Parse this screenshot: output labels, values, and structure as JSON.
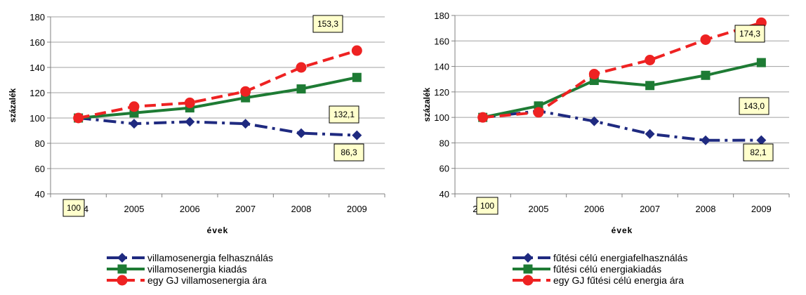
{
  "chart_data": [
    {
      "type": "line",
      "xlabel": "évek",
      "ylabel": "százalék",
      "ylim": [
        40,
        180
      ],
      "yticks": [
        "40",
        "60",
        "80",
        "100",
        "120",
        "140",
        "160",
        "180"
      ],
      "grid": "horizontal",
      "legend_position": "bottom",
      "categories": [
        "2004",
        "2005",
        "2006",
        "2007",
        "2008",
        "2009"
      ],
      "series": [
        {
          "name": "villamosenergia felhasználás",
          "color": "#1f2a80",
          "marker": "diamond",
          "dash": "dashdot",
          "values": [
            100,
            95.5,
            97,
            95.5,
            88,
            86.3
          ]
        },
        {
          "name": "villamosenergia kiadás",
          "color": "#1e7b34",
          "marker": "square",
          "dash": "solid",
          "values": [
            100,
            104,
            108,
            116,
            123,
            132.1
          ]
        },
        {
          "name": "egy GJ  villamosenergia ára",
          "color": "#ee2222",
          "marker": "circle",
          "dash": "dash",
          "values": [
            100,
            109,
            112,
            121,
            140,
            153.3
          ]
        }
      ],
      "annotations": [
        {
          "text": "100",
          "series": 0,
          "index": 0
        },
        {
          "text": "153,3",
          "series": 2,
          "index": 5
        },
        {
          "text": "132,1",
          "series": 1,
          "index": 5
        },
        {
          "text": "86,3",
          "series": 0,
          "index": 5
        }
      ]
    },
    {
      "type": "line",
      "xlabel": "évek",
      "ylabel": "százalék",
      "ylim": [
        40,
        180
      ],
      "yticks": [
        "40",
        "60",
        "80",
        "100",
        "120",
        "140",
        "160",
        "180"
      ],
      "grid": "horizontal",
      "legend_position": "bottom",
      "categories": [
        "2004",
        "2005",
        "2006",
        "2007",
        "2008",
        "2009"
      ],
      "series": [
        {
          "name": "fűtési célú energiafelhasználás",
          "color": "#1f2a80",
          "marker": "diamond",
          "dash": "dashdot",
          "values": [
            100,
            105,
            97,
            87,
            82,
            82.1
          ]
        },
        {
          "name": "fűtési célú energiakiadás",
          "color": "#1e7b34",
          "marker": "square",
          "dash": "solid",
          "values": [
            100,
            109,
            129,
            125,
            133,
            143.0
          ]
        },
        {
          "name": "egy GJ  fűtési célú energia ára",
          "color": "#ee2222",
          "marker": "circle",
          "dash": "dash",
          "values": [
            100,
            104,
            134,
            145,
            161,
            174.3
          ]
        }
      ],
      "annotations": [
        {
          "text": "100",
          "series": 0,
          "index": 0
        },
        {
          "text": "174,3",
          "series": 2,
          "index": 5
        },
        {
          "text": "143,0",
          "series": 1,
          "index": 5
        },
        {
          "text": "82,1",
          "series": 0,
          "index": 5
        }
      ]
    }
  ]
}
